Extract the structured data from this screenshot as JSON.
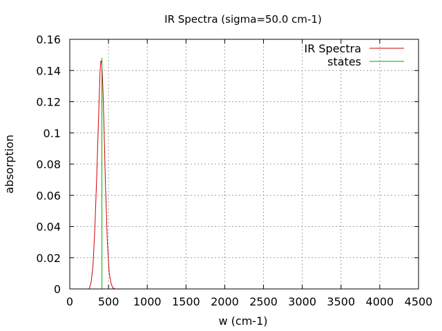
{
  "chart_data": {
    "type": "line",
    "title": "IR Spectra (sigma=50.0 cm-1)",
    "xlabel": "w (cm-1)",
    "ylabel": "absorption",
    "xlim": [
      0,
      4500
    ],
    "ylim": [
      0,
      0.16
    ],
    "xticks": [
      0,
      500,
      1000,
      1500,
      2000,
      2500,
      3000,
      3500,
      4000,
      4500
    ],
    "yticks": [
      0,
      0.02,
      0.04,
      0.06,
      0.08,
      0.1,
      0.12,
      0.14,
      0.16
    ],
    "xtick_labels": [
      "0",
      "500",
      "1000",
      "1500",
      "2000",
      "2500",
      "3000",
      "3500",
      "4000",
      "4500"
    ],
    "ytick_labels": [
      "0",
      "0.02",
      "0.04",
      "0.06",
      "0.08",
      "0.1",
      "0.12",
      "0.14",
      "0.16"
    ],
    "grid": true,
    "legend_position": "top-right",
    "series": [
      {
        "name": "IR Spectra",
        "color": "#cc0000",
        "x": [
          250,
          275,
          300,
          325,
          350,
          375,
          390,
          400,
          410,
          420,
          430,
          440,
          460,
          485,
          510,
          535,
          560,
          585
        ],
        "y": [
          0.0,
          0.004,
          0.015,
          0.04,
          0.075,
          0.115,
          0.138,
          0.146,
          0.146,
          0.138,
          0.125,
          0.108,
          0.068,
          0.03,
          0.01,
          0.003,
          0.0005,
          0.0
        ]
      },
      {
        "name": "states",
        "color": "#00aa00",
        "x": [
          415,
          415
        ],
        "y": [
          0,
          0.148
        ]
      }
    ]
  }
}
